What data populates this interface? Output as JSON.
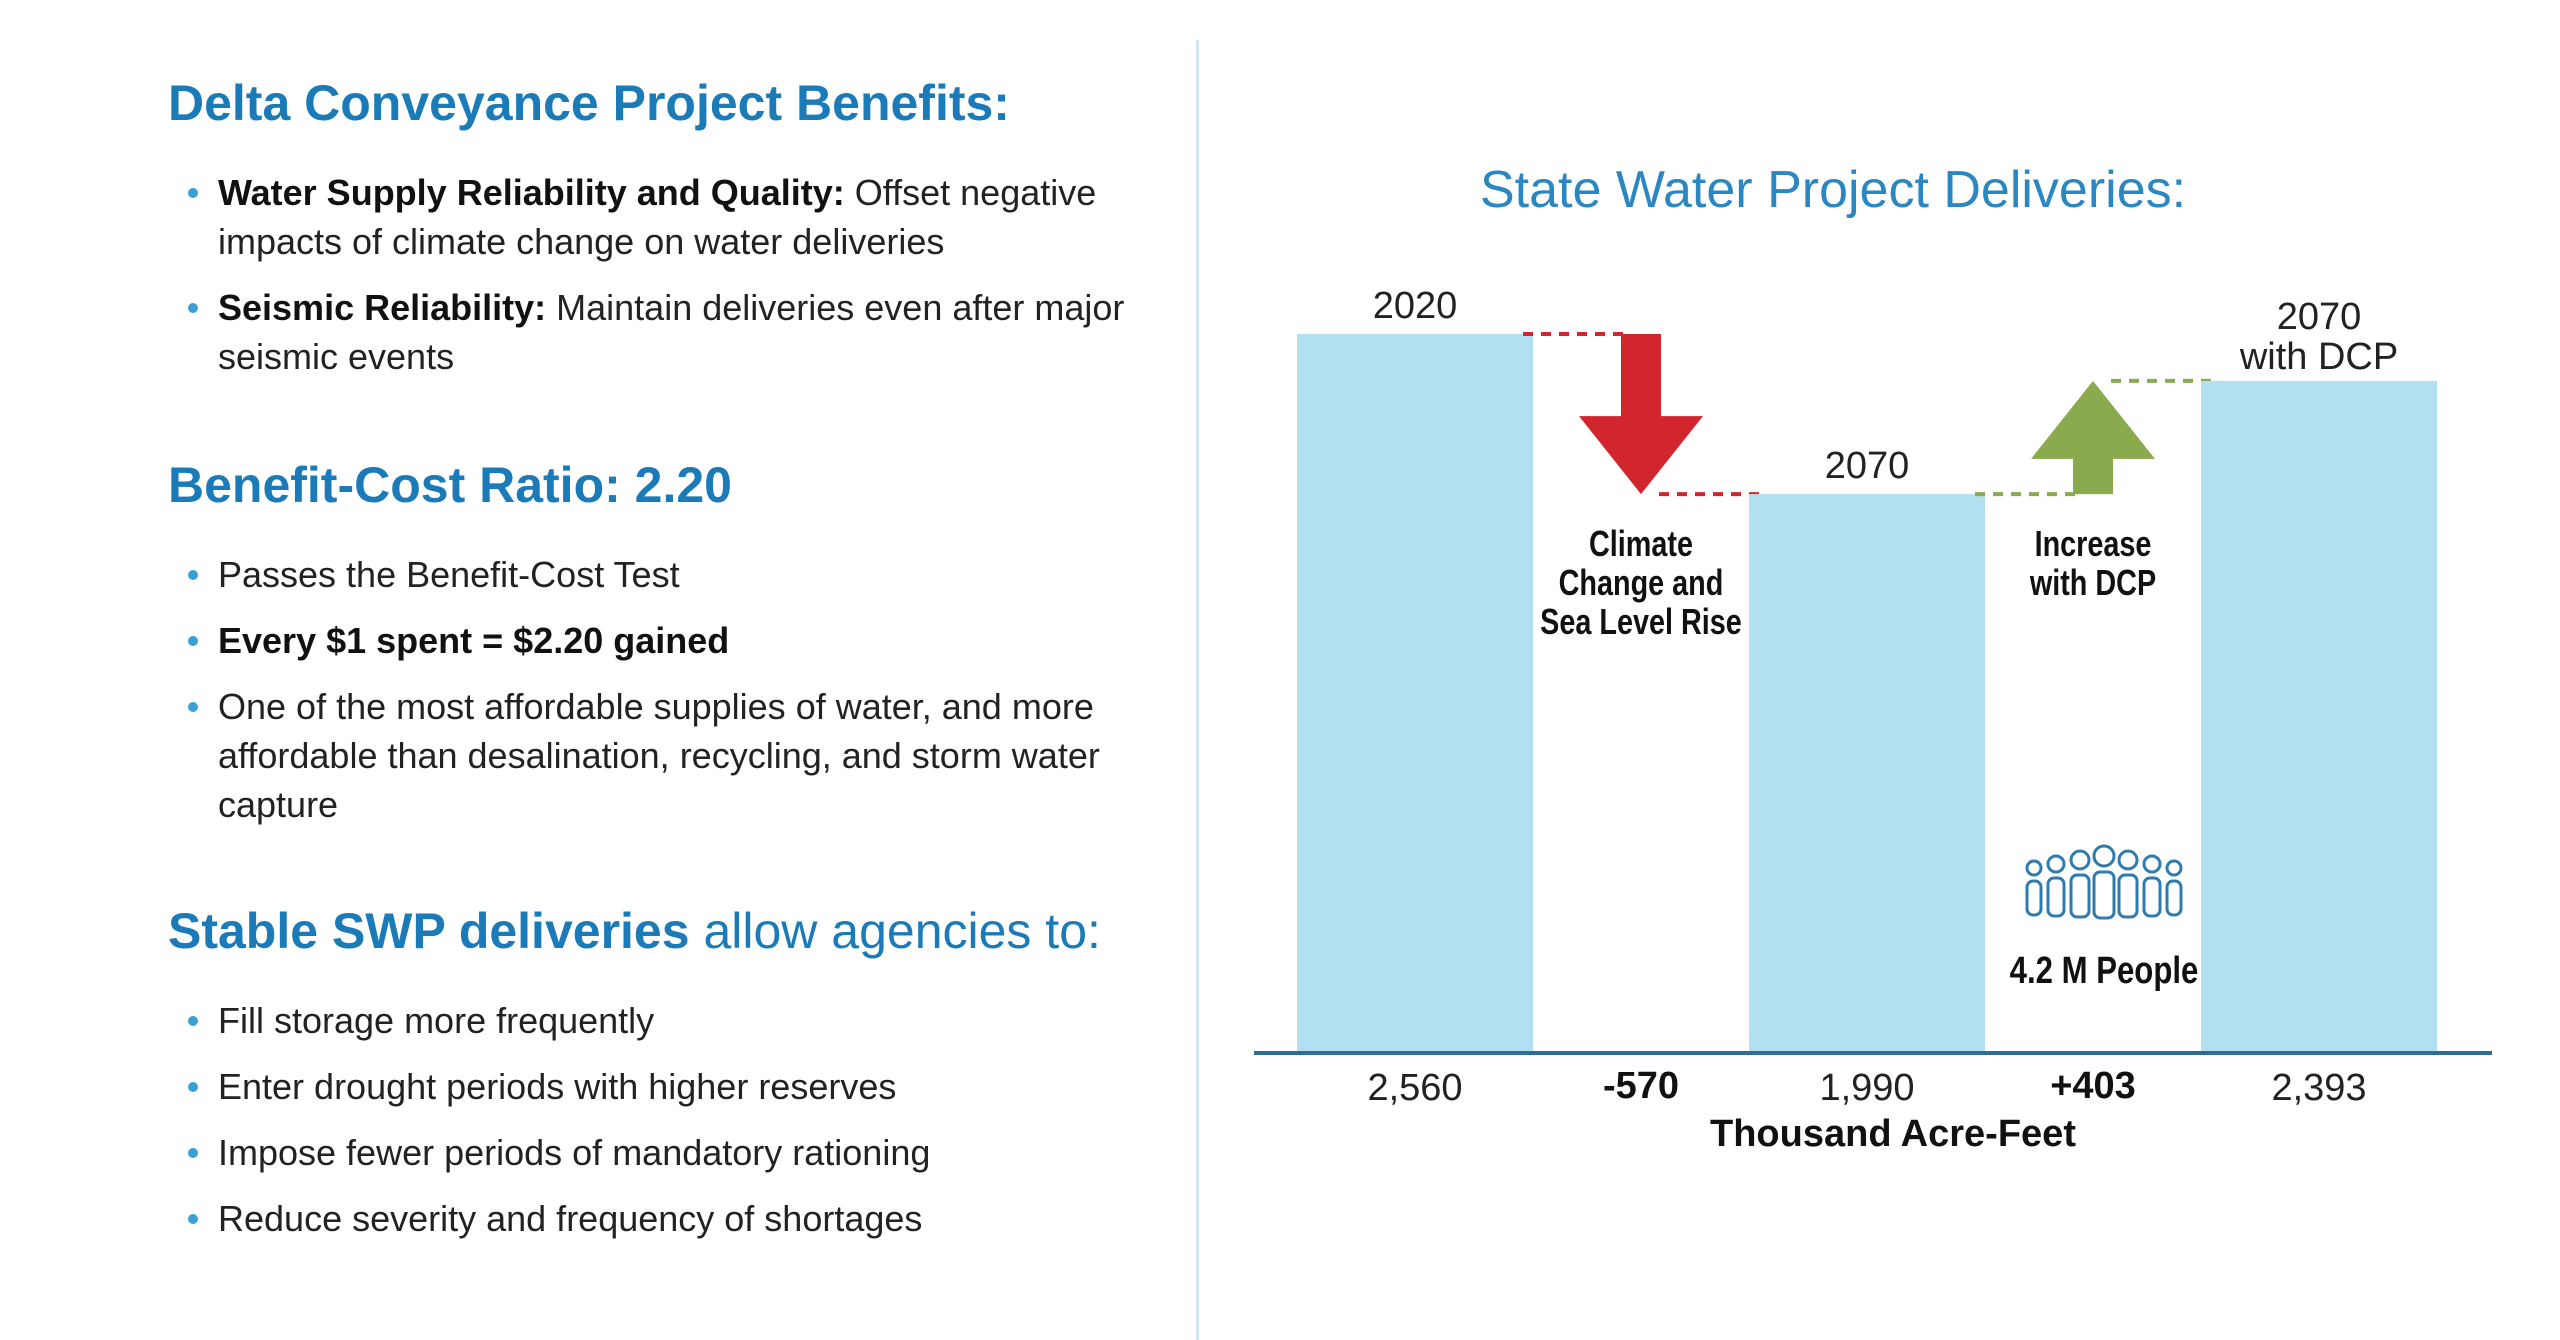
{
  "left": {
    "benefits": {
      "title": "Delta Conveyance Project Benefits:",
      "items": [
        {
          "bold": "Water Supply Reliability and Quality:",
          "text": " Offset negative impacts of climate change on water deliveries"
        },
        {
          "bold": "Seismic Reliability:",
          "text": " Maintain deliveries even after major seismic events"
        }
      ]
    },
    "bcr": {
      "title": "Benefit-Cost Ratio: 2.20",
      "items": [
        {
          "bold": "",
          "text": "Passes the Benefit-Cost Test"
        },
        {
          "bold": "Every $1 spent = $2.20 gained",
          "text": ""
        },
        {
          "bold": "",
          "text": "One of the most affordable supplies of water, and more affordable than desalination, recycling, and storm water capture"
        }
      ]
    },
    "stable": {
      "title_bold": "Stable SWP deliveries",
      "title_light": " allow agencies to:",
      "items": [
        {
          "bold": "",
          "text": "Fill storage more frequently"
        },
        {
          "bold": "",
          "text": "Enter drought periods with higher reserves"
        },
        {
          "bold": "",
          "text": "Impose fewer periods of mandatory rationing"
        },
        {
          "bold": "",
          "text": "Reduce severity and frequency of shortages"
        }
      ]
    }
  },
  "colors": {
    "heading": "#1a7bb8",
    "bar": "#b3e0f0",
    "decrease": "#d2262e",
    "increase": "#8aaa4e",
    "axis": "#2a6e96",
    "people_icon": "#2f7bb0"
  },
  "chart_data": {
    "type": "bar",
    "title": "State Water Project Deliveries:",
    "xlabel": "Thousand Acre-Feet",
    "ylim": [
      0,
      2560
    ],
    "categories": [
      {
        "label": "2020",
        "value": 2560,
        "value_label": "2,560",
        "kind": "bar"
      },
      {
        "label": "Climate Change and Sea Level Rise",
        "value": -570,
        "value_label": "-570",
        "kind": "decrease"
      },
      {
        "label": "2070",
        "value": 1990,
        "value_label": "1,990",
        "kind": "bar"
      },
      {
        "label": "Increase with DCP",
        "value": 403,
        "value_label": "+403",
        "kind": "increase"
      },
      {
        "label": "2070 with DCP",
        "value": 2393,
        "value_label": "2,393",
        "kind": "bar"
      }
    ],
    "annotation": "4.2 M People",
    "annotation_icon": "people-group-icon"
  }
}
